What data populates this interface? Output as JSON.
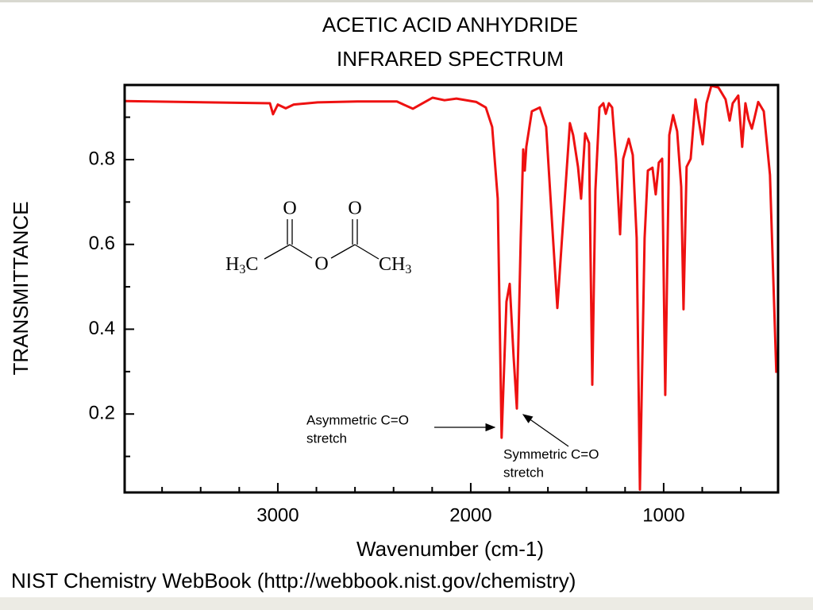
{
  "chart_data": {
    "type": "line",
    "title": [
      "ACETIC ACID ANHYDRIDE",
      "INFRARED SPECTRUM"
    ],
    "xlabel": "Wavenumber (cm-1)",
    "ylabel": "TRANSMITTANCE",
    "footer": "NIST Chemistry WebBook (http://webbook.nist.gov/chemistry)",
    "color": "#ee1111",
    "xlim": [
      3794,
      407
    ],
    "ylim": [
      0.015,
      0.976
    ],
    "xticks": [
      3000,
      2000,
      1000
    ],
    "xminorticks": [
      3600,
      3400,
      3200,
      2800,
      2600,
      2400,
      2200,
      1800,
      1600,
      1400,
      1200,
      800,
      600
    ],
    "yticks": [
      0.2,
      0.4,
      0.6,
      0.8
    ],
    "yminorticks": [
      0.1,
      0.3,
      0.5,
      0.7,
      0.9
    ],
    "x": [
      3790,
      3041,
      3025,
      3000,
      2959,
      2918,
      2794,
      2588,
      2383,
      2300,
      2198,
      2136,
      2074,
      1971,
      1922,
      1889,
      1860,
      1840,
      1815,
      1798,
      1778,
      1761,
      1741,
      1728,
      1720,
      1712,
      1683,
      1642,
      1609,
      1576,
      1551,
      1527,
      1486,
      1469,
      1444,
      1428,
      1407,
      1387,
      1370,
      1354,
      1333,
      1313,
      1300,
      1284,
      1267,
      1247,
      1226,
      1210,
      1181,
      1160,
      1140,
      1123,
      1099,
      1082,
      1058,
      1041,
      1025,
      1008,
      992,
      971,
      951,
      930,
      909,
      897,
      881,
      860,
      835,
      819,
      798,
      778,
      753,
      716,
      679,
      658,
      642,
      613,
      593,
      576,
      560,
      543,
      531,
      510,
      481,
      449,
      416
    ],
    "values": [
      0.938,
      0.933,
      0.907,
      0.93,
      0.921,
      0.93,
      0.935,
      0.937,
      0.937,
      0.92,
      0.946,
      0.94,
      0.944,
      0.936,
      0.923,
      0.877,
      0.708,
      0.144,
      0.465,
      0.507,
      0.335,
      0.213,
      0.615,
      0.824,
      0.774,
      0.83,
      0.914,
      0.923,
      0.877,
      0.634,
      0.45,
      0.615,
      0.886,
      0.858,
      0.783,
      0.708,
      0.862,
      0.839,
      0.269,
      0.727,
      0.923,
      0.933,
      0.908,
      0.933,
      0.923,
      0.802,
      0.624,
      0.802,
      0.849,
      0.811,
      0.615,
      0.022,
      0.615,
      0.774,
      0.781,
      0.718,
      0.793,
      0.802,
      0.245,
      0.858,
      0.905,
      0.867,
      0.736,
      0.447,
      0.783,
      0.802,
      0.942,
      0.895,
      0.836,
      0.933,
      0.974,
      0.97,
      0.942,
      0.892,
      0.933,
      0.951,
      0.83,
      0.933,
      0.895,
      0.873,
      0.895,
      0.936,
      0.914,
      0.764,
      0.297
    ],
    "annotations": [
      {
        "lines": [
          "Asymmetric C=O",
          "stretch"
        ]
      },
      {
        "lines": [
          "Symmetric C=O",
          "stretch"
        ]
      }
    ],
    "molecule": {
      "oxygens": [
        "O",
        "O",
        "O"
      ],
      "left_group": [
        "H",
        "3",
        "C"
      ],
      "right_group": [
        "CH",
        "3"
      ]
    }
  }
}
